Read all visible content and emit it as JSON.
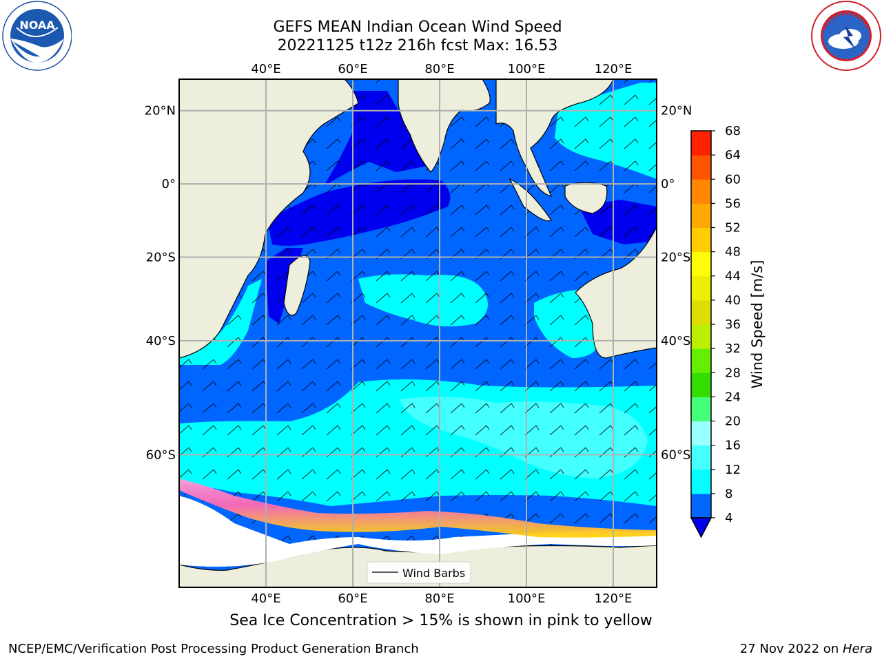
{
  "header": {
    "title_line1": "GEFS MEAN Indian Ocean Wind Speed",
    "title_line2": "20221125 t12z 216h fcst   Max: 16.53"
  },
  "logos": {
    "left": {
      "name": "noaa-logo",
      "text": "NOAA",
      "ring_text": "NATIONAL OCEANIC AND ATMOSPHERIC ADMINISTRATION · U.S. DEPARTMENT OF COMMERCE"
    },
    "right": {
      "name": "nws-logo",
      "ring_text": "NATIONAL WEATHER SERVICE"
    }
  },
  "map": {
    "lon_labels": [
      "40°E",
      "60°E",
      "80°E",
      "100°E",
      "120°E"
    ],
    "lat_labels": [
      "20°N",
      "0°",
      "20°S",
      "40°S",
      "60°S"
    ],
    "lon_ticks": [
      40,
      60,
      80,
      100,
      120
    ],
    "lat_ticks": [
      20,
      0,
      -20,
      -40,
      -60
    ],
    "extent": {
      "lon": [
        20,
        130
      ],
      "lat": [
        -74,
        28
      ]
    },
    "legend_label": "Wind Barbs",
    "colors": {
      "land": "#eeeedc",
      "sea_ice_low": "#ff69b4",
      "sea_ice_high": "#ffd700"
    }
  },
  "colorbar": {
    "label": "Wind Speed [m/s]",
    "ticks": [
      "4",
      "8",
      "12",
      "16",
      "20",
      "24",
      "28",
      "32",
      "36",
      "40",
      "44",
      "48",
      "52",
      "56",
      "60",
      "64",
      "68"
    ],
    "colors": [
      "#0066ff",
      "#00ffff",
      "#44ffff",
      "#99ffff",
      "#44ff77",
      "#33dd00",
      "#66ee00",
      "#bbee00",
      "#dddd00",
      "#eeee00",
      "#ffff00",
      "#ffcc00",
      "#ffaa00",
      "#ff8800",
      "#ff5500",
      "#ff2200"
    ],
    "under_color": "#0000ee"
  },
  "footer": {
    "footnote": "Sea Ice Concentration > 15% is shown in pink to yellow",
    "credit": "NCEP/EMC/Verification Post Processing Product Generation Branch",
    "date": "27 Nov 2022 on ",
    "host": "Hera"
  }
}
